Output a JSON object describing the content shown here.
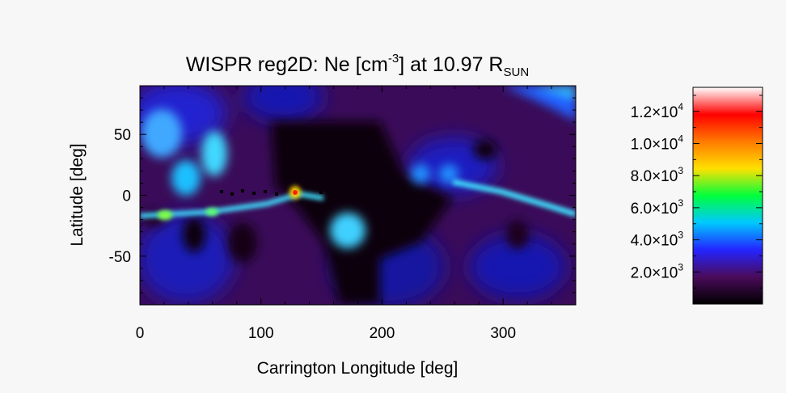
{
  "chart_data": {
    "type": "heatmap",
    "title": {
      "main": "WISPR reg2D: Ne [cm",
      "exp": "-3",
      "mid": "] at 10.97 R",
      "sub": "SUN"
    },
    "xlabel": "Carrington Longitude [deg]",
    "ylabel": "Latitude [deg]",
    "xlim": [
      0,
      360
    ],
    "ylim": [
      -90,
      90
    ],
    "x_ticks": [
      "0",
      "100",
      "200",
      "300"
    ],
    "y_ticks": [
      "50",
      "0",
      "-50"
    ],
    "colorbar": {
      "range": [
        0,
        13500
      ],
      "colormap": [
        "#000000",
        "#4a0b5a",
        "#2424ff",
        "#00c8ff",
        "#00ff3c",
        "#ffe000",
        "#ff7a00",
        "#ff0000",
        "#ffffff"
      ],
      "ticks": [
        {
          "value": 2000,
          "mant": "2.0×10",
          "exp": "3"
        },
        {
          "value": 4000,
          "mant": "4.0×10",
          "exp": "3"
        },
        {
          "value": 6000,
          "mant": "6.0×10",
          "exp": "3"
        },
        {
          "value": 8000,
          "mant": "8.0×10",
          "exp": "3"
        },
        {
          "value": 10000,
          "mant": "1.0×10",
          "exp": "4"
        },
        {
          "value": 12000,
          "mant": "1.2×10",
          "exp": "4"
        }
      ]
    },
    "features": [
      {
        "lon": 0,
        "lat": 90,
        "value": 0
      },
      {
        "lon": 360,
        "lat": 85,
        "value": 4000
      },
      {
        "lon": 20,
        "lat": -15,
        "value": 5500
      },
      {
        "lon": 60,
        "lat": -12,
        "value": 5000
      },
      {
        "lon": 128,
        "lat": 5,
        "value": 12500
      },
      {
        "lon": 160,
        "lat": -30,
        "value": 3500
      },
      {
        "lon": 235,
        "lat": 20,
        "value": 3000
      },
      {
        "lon": 300,
        "lat": -5,
        "value": 3000
      },
      {
        "lon": 25,
        "lat": 40,
        "value": 3500
      },
      {
        "lon": 60,
        "lat": 40,
        "value": 3500
      }
    ]
  }
}
